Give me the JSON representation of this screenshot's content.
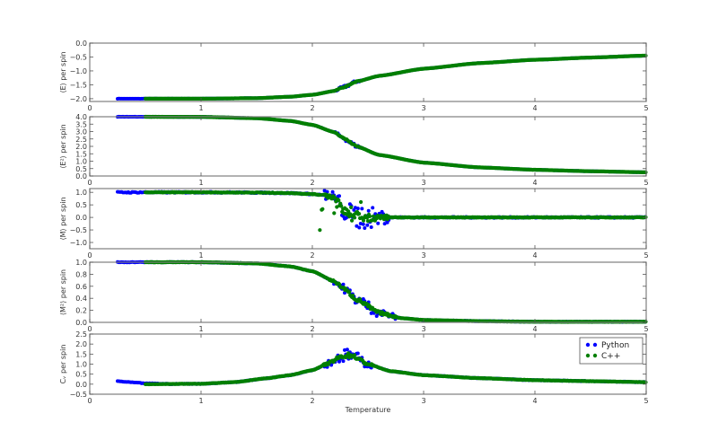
{
  "chart_data": {
    "type": "scatter",
    "title": "",
    "xlabel": "Temperature",
    "xlim": [
      0,
      5
    ],
    "xticks": [
      "0",
      "1",
      "2",
      "3",
      "4",
      "5"
    ],
    "legend": {
      "position": "upper right of bottom panel",
      "entries": [
        {
          "label": "Python",
          "color": "#0000ff"
        },
        {
          "label": "C++",
          "color": "#007f00"
        }
      ]
    },
    "series_names": [
      "Python",
      "C++"
    ],
    "python_range": [
      0.25,
      5.0
    ],
    "cpp_range": [
      0.5,
      5.0
    ],
    "critical_temperature": 2.27,
    "panels": [
      {
        "id": "energy",
        "ylabel": "⟨E⟩ per spin",
        "ylim": [
          -2.1,
          0.0
        ],
        "yticks": [
          "0.0",
          "-0.5",
          "-1.0",
          "-1.5",
          "-2.0"
        ],
        "ytick_values": [
          0.0,
          -0.5,
          -1.0,
          -1.5,
          -2.0
        ],
        "curve": {
          "x": [
            0.25,
            1.0,
            1.5,
            1.8,
            2.0,
            2.2,
            2.27,
            2.4,
            2.6,
            3.0,
            3.5,
            4.0,
            4.5,
            5.0
          ],
          "y": [
            -2.0,
            -2.0,
            -1.98,
            -1.93,
            -1.86,
            -1.72,
            -1.6,
            -1.38,
            -1.18,
            -0.92,
            -0.72,
            -0.6,
            -0.52,
            -0.45
          ]
        },
        "noise_region": [
          2.2,
          2.45
        ],
        "noise_amp": 0.06
      },
      {
        "id": "energy-squared",
        "ylabel": "⟨E²⟩ per spin",
        "ylim": [
          0.0,
          4.0
        ],
        "yticks": [
          "4.0",
          "3.5",
          "3.0",
          "2.5",
          "2.0",
          "1.5",
          "1.0",
          "0.5",
          "0.0"
        ],
        "ytick_values": [
          4.0,
          3.5,
          3.0,
          2.5,
          2.0,
          1.5,
          1.0,
          0.5,
          0.0
        ],
        "curve": {
          "x": [
            0.25,
            1.0,
            1.5,
            1.8,
            2.0,
            2.2,
            2.27,
            2.4,
            2.6,
            3.0,
            3.5,
            4.0,
            4.5,
            5.0
          ],
          "y": [
            4.0,
            3.99,
            3.9,
            3.72,
            3.45,
            2.95,
            2.6,
            2.0,
            1.42,
            0.9,
            0.58,
            0.42,
            0.32,
            0.25
          ]
        },
        "noise_region": [
          2.2,
          2.45
        ],
        "noise_amp": 0.15
      },
      {
        "id": "magnetization",
        "ylabel": "⟨M⟩ per spin",
        "ylim": [
          -1.25,
          1.15
        ],
        "yticks": [
          "1.0",
          "0.5",
          "0.0",
          "-0.5",
          "-1.0"
        ],
        "ytick_values": [
          1.0,
          0.5,
          0.0,
          -0.5,
          -1.0
        ],
        "curve": {
          "x": [
            0.25,
            1.0,
            1.5,
            1.8,
            2.0,
            2.1,
            2.2,
            2.27,
            2.35,
            2.5,
            3.0,
            4.0,
            5.0
          ],
          "y": [
            1.0,
            1.0,
            0.99,
            0.97,
            0.93,
            0.89,
            0.8,
            0.35,
            0.05,
            0.0,
            0.0,
            0.0,
            0.0
          ]
        },
        "noise_region": [
          2.1,
          2.7
        ],
        "noise_amp": 0.55
      },
      {
        "id": "magnetization-squared",
        "ylabel": "⟨M²⟩ per spin",
        "ylim": [
          0.0,
          1.0
        ],
        "yticks": [
          "1.0",
          "0.8",
          "0.6",
          "0.4",
          "0.2",
          "0.0"
        ],
        "ytick_values": [
          1.0,
          0.8,
          0.6,
          0.4,
          0.2,
          0.0
        ],
        "curve": {
          "x": [
            0.25,
            1.0,
            1.5,
            1.8,
            2.0,
            2.2,
            2.27,
            2.4,
            2.6,
            2.8,
            3.0,
            3.5,
            4.0,
            5.0
          ],
          "y": [
            1.0,
            1.0,
            0.98,
            0.93,
            0.85,
            0.68,
            0.58,
            0.38,
            0.16,
            0.07,
            0.04,
            0.02,
            0.01,
            0.01
          ]
        },
        "noise_region": [
          2.15,
          2.75
        ],
        "noise_amp": 0.1
      },
      {
        "id": "heat-capacity",
        "ylabel": "Cᵥ per spin",
        "ylim": [
          -0.5,
          2.5
        ],
        "yticks": [
          "2.5",
          "2.0",
          "1.5",
          "1.0",
          "0.5",
          "0.0",
          "-0.5"
        ],
        "ytick_values": [
          2.5,
          2.0,
          1.5,
          1.0,
          0.5,
          0.0,
          -0.5
        ],
        "python_curve": {
          "x": [
            0.25,
            0.35,
            0.5,
            0.7
          ],
          "y": [
            0.15,
            0.1,
            0.04,
            0.02
          ]
        },
        "curve": {
          "x": [
            0.5,
            1.0,
            1.3,
            1.6,
            1.8,
            2.0,
            2.15,
            2.27,
            2.35,
            2.5,
            2.7,
            3.0,
            3.5,
            4.0,
            4.5,
            5.0
          ],
          "y": [
            0.0,
            0.02,
            0.1,
            0.3,
            0.45,
            0.7,
            1.05,
            1.4,
            1.45,
            1.0,
            0.65,
            0.45,
            0.3,
            0.2,
            0.15,
            0.1
          ]
        },
        "noise_region": [
          2.1,
          2.55
        ],
        "noise_amp": 0.35
      }
    ]
  }
}
